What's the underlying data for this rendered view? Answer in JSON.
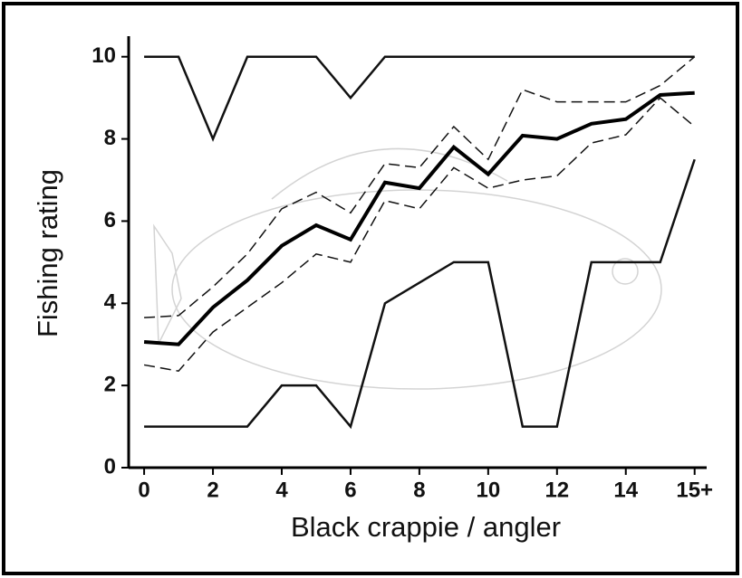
{
  "chart_data": {
    "type": "line",
    "x_label": "Black crappie / angler",
    "y_label": "Fishing rating",
    "x": [
      0,
      1,
      2,
      3,
      4,
      5,
      6,
      7,
      8,
      9,
      10,
      11,
      12,
      13,
      14,
      15,
      16
    ],
    "series": [
      {
        "color": "#111111",
        "width": 2.5,
        "dash": "none",
        "values": [
          10,
          10,
          8,
          10,
          10,
          10,
          9,
          10,
          10,
          10,
          10,
          10,
          10,
          10,
          10,
          10,
          10
        ]
      },
      {
        "color": "#111111",
        "width": 1.5,
        "dash": "12 6",
        "values": [
          3.65,
          3.7,
          4.4,
          5.2,
          6.3,
          6.7,
          6.2,
          7.4,
          7.3,
          8.3,
          7.5,
          9.2,
          8.9,
          8.9,
          8.9,
          9.3,
          10
        ]
      },
      {
        "color": "#000000",
        "width": 4,
        "dash": "none",
        "values": [
          3.06,
          3.0,
          3.9,
          4.56,
          5.4,
          5.9,
          5.55,
          6.94,
          6.8,
          7.8,
          7.14,
          8.08,
          8.0,
          8.37,
          8.48,
          9.07,
          9.12
        ]
      },
      {
        "color": "#111111",
        "width": 1.5,
        "dash": "12 6",
        "values": [
          2.5,
          2.35,
          3.3,
          3.9,
          4.5,
          5.2,
          5.0,
          6.5,
          6.3,
          7.3,
          6.8,
          7.0,
          7.1,
          7.9,
          8.1,
          9.0,
          8.3
        ]
      },
      {
        "color": "#111111",
        "width": 2.5,
        "dash": "none",
        "values": [
          1,
          1,
          1,
          1,
          2,
          2,
          1,
          4,
          4.5,
          5,
          5,
          1,
          1,
          5,
          5,
          5,
          7.5
        ]
      }
    ],
    "xlim": [
      -0.45,
      16.35
    ],
    "xticks": [
      0,
      2,
      4,
      6,
      8,
      10,
      12,
      14,
      {
        "value": 16,
        "label": "15+"
      }
    ],
    "ylim": [
      0,
      10.5
    ],
    "yticks": [
      0,
      2,
      4,
      6,
      8,
      10
    ],
    "grid": false
  }
}
